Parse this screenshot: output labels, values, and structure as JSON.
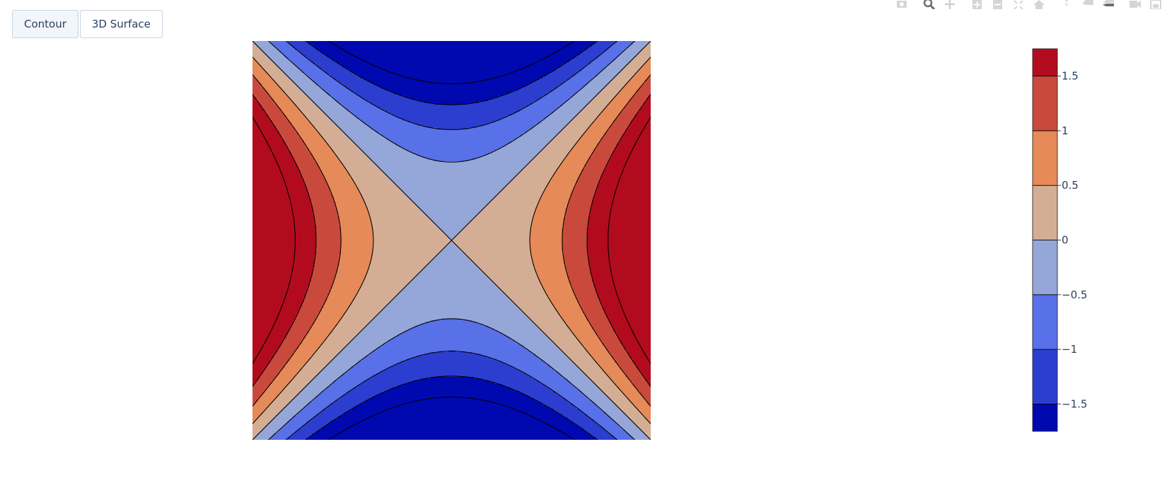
{
  "buttons": [
    {
      "label": "Contour",
      "active": true
    },
    {
      "label": "3D Surface",
      "active": false
    }
  ],
  "modebar": [
    [
      "camera-icon"
    ],
    [
      "zoom-icon",
      "pan-icon"
    ],
    [
      "zoom-in-icon",
      "zoom-out-icon",
      "autoscale-icon",
      "reset-axes-icon"
    ],
    [
      "spike-lines-icon",
      "hover-closest-icon",
      "hover-compare-icon"
    ],
    [
      "camera-view-icon",
      "save-icon"
    ]
  ],
  "chart_data": {
    "type": "contour",
    "function": "x^2 - y^2",
    "x_range": [
      -1.8,
      1.8
    ],
    "y_range": [
      -1.8,
      1.8
    ],
    "contour_levels": [
      -2.0,
      -1.5,
      -1.0,
      -0.5,
      0.0,
      0.5,
      1.0,
      1.5,
      2.0
    ],
    "fill_colors": [
      "#0008b0",
      "#2b3ed0",
      "#5870e8",
      "#95a6d8",
      "#d4ae94",
      "#e58a58",
      "#c94a3c",
      "#b30b1e"
    ],
    "colorscale_note": "",
    "colorbar": {
      "range": [
        -1.75,
        1.75
      ],
      "ticks": [
        {
          "value": 1.5,
          "label": "1.5"
        },
        {
          "value": 1.0,
          "label": "1"
        },
        {
          "value": 0.5,
          "label": "0.5"
        },
        {
          "value": 0.0,
          "label": "0"
        },
        {
          "value": -0.5,
          "label": "−0.5"
        },
        {
          "value": -1.0,
          "label": "−1"
        },
        {
          "value": -1.5,
          "label": "−1.5"
        }
      ]
    },
    "title": "",
    "xlabel": "",
    "ylabel": "",
    "grid": false
  }
}
